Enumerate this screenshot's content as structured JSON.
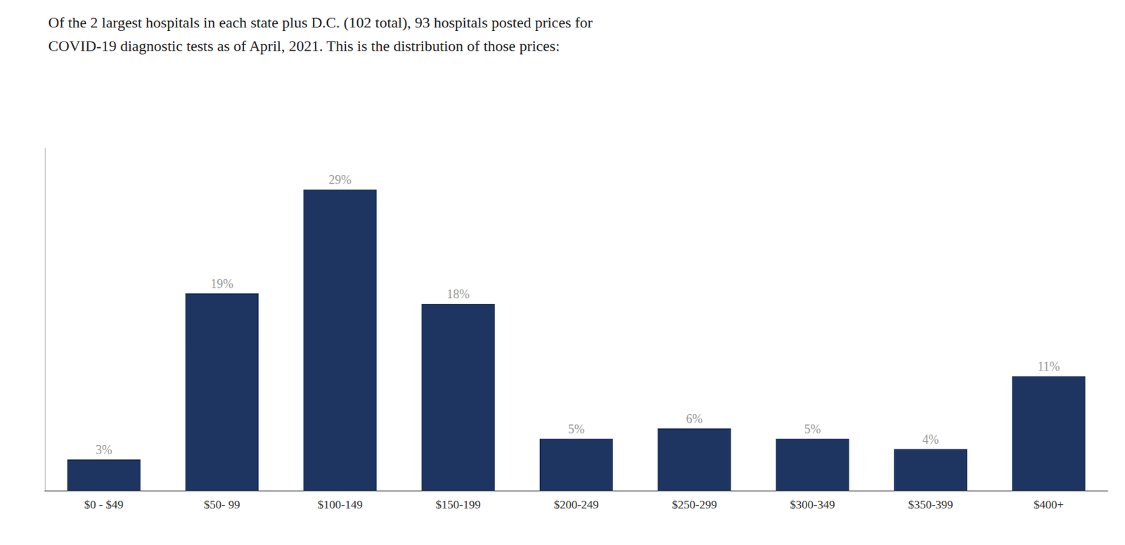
{
  "chart_data": {
    "type": "bar",
    "title": "Of the 2 largest hospitals in each state plus D.C. (102 total), 93 hospitals posted prices for\nCOVID-19 diagnostic tests as of April, 2021. This is the distribution of those prices:",
    "categories": [
      "$0 - $49",
      "$50- 99",
      "$100-149",
      "$150-199",
      "$200-249",
      "$250-299",
      "$300-349",
      "$350-399",
      "$400+"
    ],
    "values": [
      3,
      19,
      29,
      18,
      5,
      6,
      5,
      4,
      11
    ],
    "value_labels": [
      "3%",
      "19%",
      "29%",
      "18%",
      "5%",
      "6%",
      "5%",
      "4%",
      "11%"
    ],
    "data_labels": true,
    "color": "#1e3461",
    "ylim": [
      0,
      33
    ],
    "grid": false,
    "tick_labels": "x"
  }
}
